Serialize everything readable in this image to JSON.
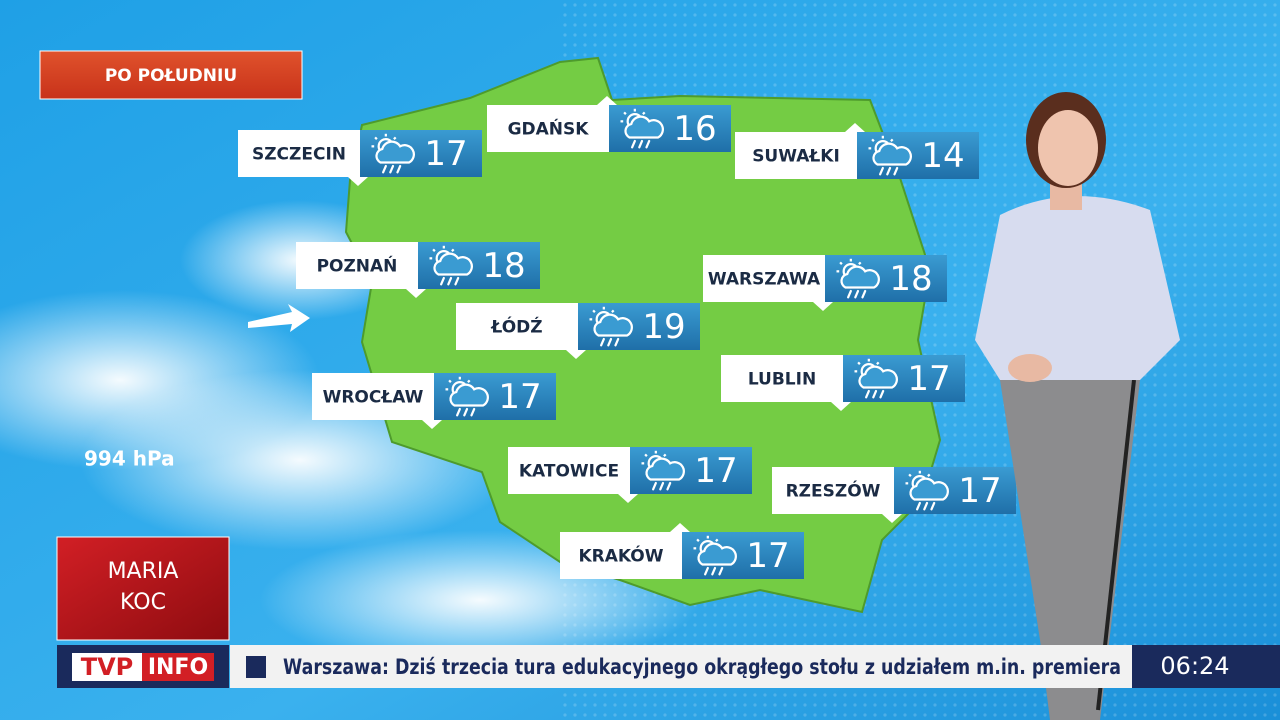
{
  "header": {
    "label": "PO POŁUDNIU"
  },
  "cities": [
    {
      "name": "SZCZECIN",
      "temp": "17"
    },
    {
      "name": "GDAŃSK",
      "temp": "16"
    },
    {
      "name": "SUWAŁKI",
      "temp": "14"
    },
    {
      "name": "POZNAŃ",
      "temp": "18"
    },
    {
      "name": "WARSZAWA",
      "temp": "18"
    },
    {
      "name": "ŁÓDŹ",
      "temp": "19"
    },
    {
      "name": "WROCŁAW",
      "temp": "17"
    },
    {
      "name": "LUBLIN",
      "temp": "17"
    },
    {
      "name": "KATOWICE",
      "temp": "17"
    },
    {
      "name": "RZESZÓW",
      "temp": "17"
    },
    {
      "name": "KRAKÓW",
      "temp": "17"
    }
  ],
  "pressure": "994 hPa",
  "presenter": {
    "first_name": "MARIA",
    "last_name": "KOC"
  },
  "ticker": {
    "logo_left": "TVP",
    "logo_right": "INFO",
    "text": "Warszawa: Dziś trzecia tura edukacyjnego okrągłego stołu z udziałem m.in. premiera",
    "time": "06:24"
  }
}
